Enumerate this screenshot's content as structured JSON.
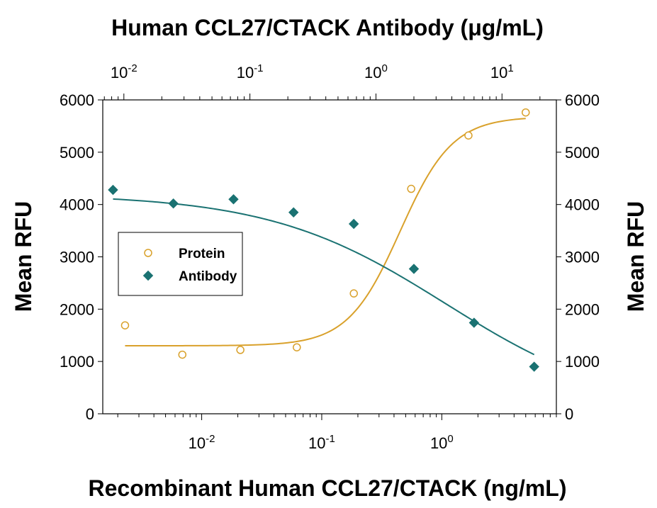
{
  "chart_data": {
    "type": "scatter",
    "title_top": "Human CCL27/CTACK Antibody (μg/mL)",
    "xlabel": "Recombinant Human CCL27/CTACK (ng/mL)",
    "ylabel_left": "Mean RFU",
    "ylabel_right": "Mean RFU",
    "x_scale": "log",
    "xlim": [
      0.0015,
      9
    ],
    "x_ticks": [
      {
        "value": 0.01,
        "base": "10",
        "exp": "-2"
      },
      {
        "value": 0.1,
        "base": "10",
        "exp": "-1"
      },
      {
        "value": 1,
        "base": "10",
        "exp": "0"
      }
    ],
    "x2_scale": "log",
    "x2lim": [
      0.0068,
      27
    ],
    "x2_ticks": [
      {
        "value": 0.01,
        "base": "10",
        "exp": "-2"
      },
      {
        "value": 0.1,
        "base": "10",
        "exp": "-1"
      },
      {
        "value": 1,
        "base": "10",
        "exp": "0"
      },
      {
        "value": 10,
        "base": "10",
        "exp": "1"
      }
    ],
    "ylim": [
      0,
      6000
    ],
    "y_ticks": [
      "0",
      "1000",
      "2000",
      "3000",
      "4000",
      "5000",
      "6000"
    ],
    "legend_position": "middle-left",
    "series": [
      {
        "name": "Protein",
        "marker": "open-circle",
        "color": "#D9A12B",
        "axis": "bottom",
        "x": [
          0.0023,
          0.0069,
          0.021,
          0.062,
          0.185,
          0.556,
          1.667,
          5.0
        ],
        "y": [
          1690,
          1130,
          1220,
          1270,
          2300,
          4300,
          5320,
          5760
        ],
        "fit": {
          "bottom": 1300,
          "top": 5680,
          "ec50": 0.45,
          "hill": 2.0
        }
      },
      {
        "name": "Antibody",
        "marker": "filled-diamond",
        "color": "#1A7272",
        "axis": "top",
        "x": [
          0.0082,
          0.0247,
          0.0741,
          0.222,
          0.667,
          2.0,
          6.0,
          18.0
        ],
        "y": [
          4280,
          4020,
          4100,
          3850,
          3630,
          2770,
          1740,
          900
        ],
        "fit": {
          "bottom": 0,
          "top": 4200,
          "ec50": 3.6,
          "hill": -0.62
        }
      }
    ]
  }
}
